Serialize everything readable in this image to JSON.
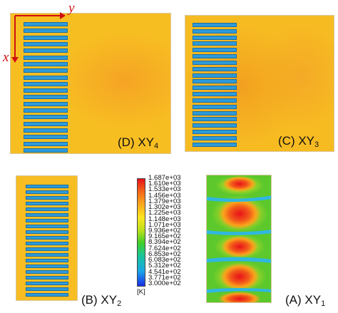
{
  "axes": {
    "x": "x",
    "y": "y"
  },
  "panels": {
    "d": {
      "letter": "(D) XY",
      "sub": "4",
      "stripe_count": 20
    },
    "c": {
      "letter": "(C) XY",
      "sub": "3",
      "stripe_count": 20
    },
    "b": {
      "letter": "(B) XY",
      "sub": "2",
      "stripe_count": 20
    },
    "a": {
      "letter": "(A) XY",
      "sub": "1"
    }
  },
  "colorbar": {
    "labels": [
      "1.687e+03",
      "1.610e+03",
      "1.533e+03",
      "1.456e+03",
      "1.379e+03",
      "1.302e+03",
      "1.225e+03",
      "1.148e+03",
      "1.071e+03",
      "9.936e+02",
      "9.165e+02",
      "8.394e+02",
      "7.624e+02",
      "6.853e+02",
      "6.083e+02",
      "5.312e+02",
      "4.541e+02",
      "3.771e+02",
      "3.000e+02"
    ],
    "unit": "[K]",
    "colors": [
      "#e8121a",
      "#f25b1a",
      "#f9a01c",
      "#fde51f",
      "#b9e01c",
      "#3fcf2a",
      "#18c49a",
      "#1ba7e8",
      "#1a2de8"
    ]
  },
  "colors": {
    "field_yellow": "#f7bd22",
    "field_orange": "#f5a623",
    "stripe": "#2f9ad8",
    "axis": "#d01010"
  }
}
